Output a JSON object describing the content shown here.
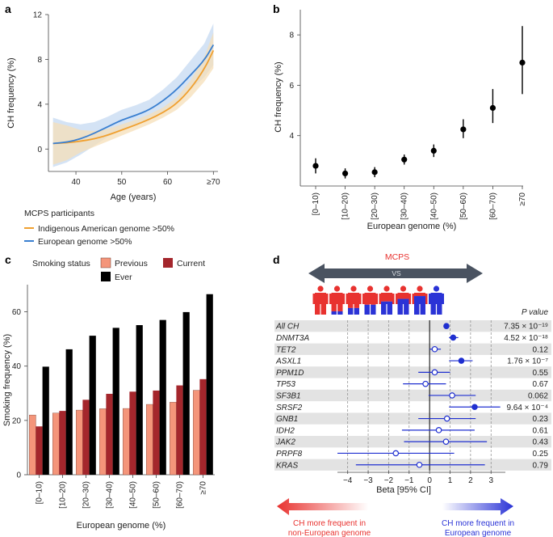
{
  "chart_data": [
    {
      "panel": "a",
      "type": "line",
      "xlabel": "Age (years)",
      "ylabel": "CH frequency (%)",
      "xticks": [
        "40",
        "50",
        "60",
        "≥70"
      ],
      "xtick_values": [
        40,
        50,
        60,
        70
      ],
      "xlim": [
        34,
        71
      ],
      "yticks": [
        0,
        4,
        8,
        12
      ],
      "ylim": [
        -2,
        12
      ],
      "legend_title": "MCPS participants",
      "colors": {
        "indigenous": "#f0a030",
        "european": "#3a7fd0",
        "band_indigenous": "#f6dfb8",
        "band_european": "#c6daf2"
      },
      "series": [
        {
          "name": "Indigenous American genome >50%",
          "color": "#f0a030",
          "x": [
            35,
            38,
            41,
            44,
            47,
            50,
            53,
            56,
            59,
            62,
            65,
            68,
            70
          ],
          "y": [
            0.5,
            0.55,
            0.7,
            0.9,
            1.25,
            1.7,
            2.15,
            2.65,
            3.25,
            4.05,
            5.35,
            7.1,
            8.8
          ],
          "lo": [
            -1.4,
            -1.0,
            -0.3,
            0.2,
            0.7,
            1.2,
            1.7,
            2.2,
            2.8,
            3.5,
            4.6,
            6.0,
            7.2
          ],
          "hi": [
            2.4,
            2.1,
            1.7,
            1.6,
            1.8,
            2.2,
            2.6,
            3.1,
            3.7,
            4.6,
            6.1,
            8.2,
            10.4
          ]
        },
        {
          "name": "European genome >50%",
          "color": "#3a7fd0",
          "x": [
            35,
            38,
            41,
            44,
            47,
            50,
            53,
            56,
            59,
            62,
            65,
            68,
            70
          ],
          "y": [
            0.5,
            0.6,
            0.9,
            1.4,
            2.0,
            2.6,
            3.0,
            3.5,
            4.3,
            5.3,
            6.6,
            7.9,
            9.3
          ],
          "lo": [
            -1.6,
            -1.2,
            -0.5,
            0.3,
            1.1,
            1.7,
            2.1,
            2.6,
            3.3,
            4.2,
            5.3,
            6.4,
            7.5
          ],
          "hi": [
            2.8,
            2.4,
            2.2,
            2.4,
            2.9,
            3.5,
            3.9,
            4.4,
            5.3,
            6.4,
            7.9,
            9.4,
            11.2
          ]
        }
      ]
    },
    {
      "panel": "b",
      "type": "scatter",
      "xlabel": "European genome (%)",
      "ylabel": "CH frequency (%)",
      "categories": [
        "[0–10)",
        "[10–20)",
        "[20–30)",
        "[30–40)",
        "[40–50)",
        "[50–60)",
        "[60–70)",
        "≥70"
      ],
      "values": [
        2.8,
        2.5,
        2.55,
        3.05,
        3.4,
        4.25,
        5.1,
        6.9
      ],
      "ci_low": [
        2.5,
        2.3,
        2.35,
        2.85,
        3.15,
        3.9,
        4.5,
        5.65
      ],
      "ci_high": [
        3.1,
        2.7,
        2.75,
        3.25,
        3.65,
        4.65,
        5.85,
        8.35
      ],
      "yticks": [
        4,
        6,
        8
      ],
      "ylim": [
        2.0,
        9.0
      ]
    },
    {
      "panel": "c",
      "type": "bar",
      "xlabel": "European genome (%)",
      "ylabel": "Smoking frequency (%)",
      "legend_title": "Smoking status",
      "categories": [
        "[0–10)",
        "[10–20)",
        "[20–30)",
        "[30–40)",
        "[40–50)",
        "[50–60)",
        "[60–70)",
        "≥70"
      ],
      "series": [
        {
          "name": "Previous",
          "color": "#f4957a",
          "values": [
            22,
            22.7,
            23.8,
            24.3,
            24.4,
            25.9,
            26.7,
            31.1
          ]
        },
        {
          "name": "Current",
          "color": "#a4262c",
          "values": [
            17.8,
            23.5,
            27.6,
            29.8,
            30.6,
            31,
            32.9,
            35.2
          ]
        },
        {
          "name": "Ever",
          "color": "#000000",
          "values": [
            39.8,
            46.2,
            51.2,
            54.1,
            55.1,
            57,
            59.9,
            66.5
          ]
        }
      ],
      "yticks": [
        0,
        20,
        40,
        60
      ],
      "ylim": [
        0,
        70
      ]
    },
    {
      "panel": "d",
      "type": "scatter",
      "subtype": "forest",
      "header": "MCPS",
      "vs": "VS",
      "xlabel": "Beta [95% CI]",
      "xticks": [
        -4,
        -3,
        -2,
        -1,
        0,
        1,
        2,
        3
      ],
      "xlim": [
        -4.5,
        3.7
      ],
      "pvalue_header": "P value",
      "rows": [
        {
          "gene": "All CH",
          "italic": false,
          "beta": 0.82,
          "lo": 0.7,
          "hi": 0.95,
          "filled": true,
          "p": "7.35 × 10⁻¹⁹"
        },
        {
          "gene": "DNMT3A",
          "italic": true,
          "beta": 1.15,
          "lo": 0.95,
          "hi": 1.4,
          "filled": true,
          "p": "4.52 × 10⁻¹⁸"
        },
        {
          "gene": "TET2",
          "italic": true,
          "beta": 0.25,
          "lo": 0.0,
          "hi": 0.55,
          "filled": false,
          "p": "0.12"
        },
        {
          "gene": "ASXL1",
          "italic": true,
          "beta": 1.55,
          "lo": 0.95,
          "hi": 2.1,
          "filled": true,
          "p": "1.76 × 10⁻⁷"
        },
        {
          "gene": "PPM1D",
          "italic": true,
          "beta": 0.25,
          "lo": -0.55,
          "hi": 1.0,
          "filled": false,
          "p": "0.55"
        },
        {
          "gene": "TP53",
          "italic": true,
          "beta": -0.2,
          "lo": -1.3,
          "hi": 0.8,
          "filled": false,
          "p": "0.67"
        },
        {
          "gene": "SF3B1",
          "italic": true,
          "beta": 1.1,
          "lo": -0.05,
          "hi": 2.25,
          "filled": false,
          "p": "0.062"
        },
        {
          "gene": "SRSF2",
          "italic": true,
          "beta": 2.2,
          "lo": 0.95,
          "hi": 3.45,
          "filled": true,
          "p": "9.64 × 10⁻⁴"
        },
        {
          "gene": "GNB1",
          "italic": true,
          "beta": 0.85,
          "lo": -0.55,
          "hi": 2.25,
          "filled": false,
          "p": "0.23"
        },
        {
          "gene": "IDH2",
          "italic": true,
          "beta": 0.45,
          "lo": -1.35,
          "hi": 2.2,
          "filled": false,
          "p": "0.61"
        },
        {
          "gene": "JAK2",
          "italic": true,
          "beta": 0.8,
          "lo": -1.25,
          "hi": 2.8,
          "filled": false,
          "p": "0.43"
        },
        {
          "gene": "PRPF8",
          "italic": true,
          "beta": -1.65,
          "lo": -4.5,
          "hi": 1.2,
          "filled": false,
          "p": "0.25"
        },
        {
          "gene": "KRAS",
          "italic": true,
          "beta": -0.5,
          "lo": -3.6,
          "hi": 2.7,
          "filled": false,
          "p": "0.79"
        }
      ],
      "left_caption": [
        "CH more frequent in",
        "non-European genome"
      ],
      "right_caption": [
        "CH more frequent in",
        "European genome"
      ],
      "colors": {
        "point": "#1f2fd0",
        "row_shade": "#e3e3e3",
        "left": "#e8322f",
        "right": "#2a33d6",
        "arrow": "#4a5361"
      }
    }
  ],
  "panels": {
    "a": "a",
    "b": "b",
    "c": "c",
    "d": "d"
  }
}
